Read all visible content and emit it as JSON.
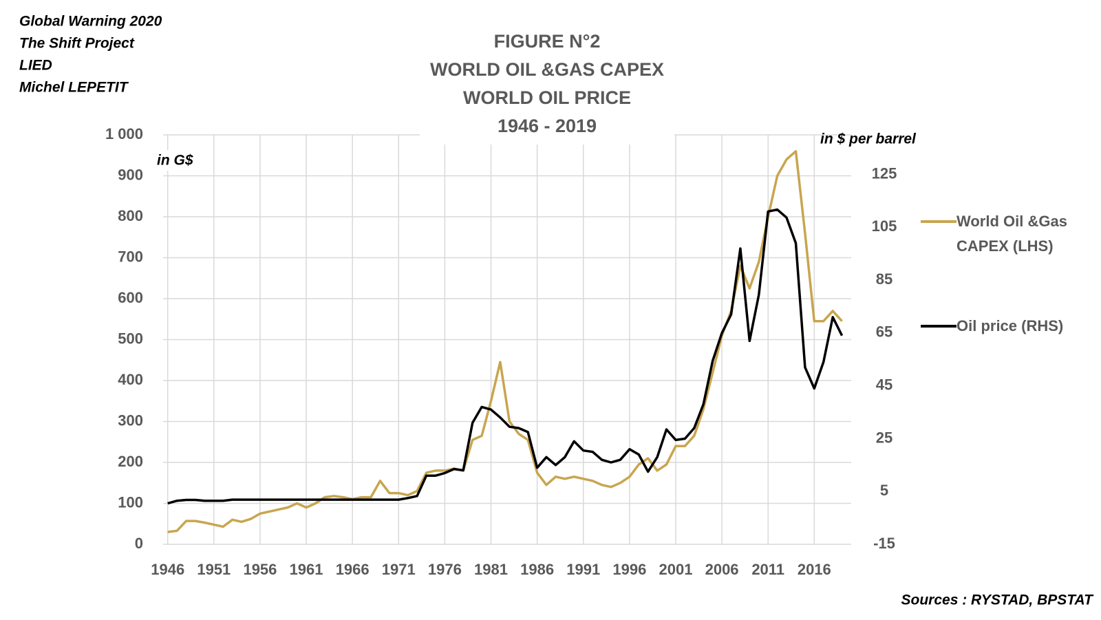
{
  "chart_data": {
    "type": "line",
    "notes": [
      "Global Warning 2020",
      "The Shift Project",
      "LIED",
      "Michel LEPETIT"
    ],
    "title_lines": [
      "FIGURE N°2",
      "WORLD OIL &GAS CAPEX",
      "WORLD OIL PRICE",
      "1946 - 2019"
    ],
    "ylabel": "in G$",
    "y2label": "in $ per barrel",
    "source": "Sources : RYSTAD, BPSTAT",
    "x": [
      1946,
      1947,
      1948,
      1949,
      1950,
      1951,
      1952,
      1953,
      1954,
      1955,
      1956,
      1957,
      1958,
      1959,
      1960,
      1961,
      1962,
      1963,
      1964,
      1965,
      1966,
      1967,
      1968,
      1969,
      1970,
      1971,
      1972,
      1973,
      1974,
      1975,
      1976,
      1977,
      1978,
      1979,
      1980,
      1981,
      1982,
      1983,
      1984,
      1985,
      1986,
      1987,
      1988,
      1989,
      1990,
      1991,
      1992,
      1993,
      1994,
      1995,
      1996,
      1997,
      1998,
      1999,
      2000,
      2001,
      2002,
      2003,
      2004,
      2005,
      2006,
      2007,
      2008,
      2009,
      2010,
      2011,
      2012,
      2013,
      2014,
      2015,
      2016,
      2017,
      2018,
      2019
    ],
    "series": [
      {
        "name": "World Oil &Gas CAPEX (LHS)",
        "color": "#c8a54f",
        "axis": "y",
        "values": [
          30,
          33,
          57,
          57,
          53,
          48,
          43,
          60,
          55,
          62,
          75,
          80,
          85,
          90,
          100,
          90,
          100,
          115,
          118,
          115,
          110,
          115,
          115,
          155,
          125,
          125,
          120,
          130,
          175,
          180,
          180,
          185,
          180,
          255,
          265,
          350,
          445,
          300,
          270,
          255,
          175,
          145,
          165,
          160,
          165,
          160,
          155,
          145,
          140,
          150,
          165,
          195,
          210,
          180,
          195,
          240,
          240,
          265,
          330,
          420,
          510,
          570,
          680,
          625,
          690,
          800,
          900,
          940,
          960,
          760,
          545,
          545,
          570,
          545
        ]
      },
      {
        "name": "Oil price (RHS)",
        "color": "#000000",
        "axis": "y2",
        "values": [
          0.5,
          1.5,
          1.8,
          1.8,
          1.5,
          1.5,
          1.5,
          1.9,
          1.9,
          1.9,
          1.9,
          1.9,
          1.9,
          1.9,
          1.9,
          1.9,
          1.9,
          1.9,
          1.9,
          1.9,
          1.9,
          1.9,
          1.9,
          1.9,
          1.9,
          1.9,
          2.5,
          3.3,
          11,
          11,
          12,
          13.5,
          13,
          31,
          37,
          36,
          33,
          29.5,
          29,
          27.5,
          14,
          18,
          15,
          18,
          24,
          20.5,
          20,
          17,
          16,
          17,
          21,
          19,
          12.5,
          18,
          28.5,
          24.5,
          25,
          29,
          38,
          54.5,
          65,
          72,
          97,
          62,
          79.5,
          111,
          111.7,
          108.7,
          99,
          52,
          44,
          54,
          71,
          64
        ]
      }
    ],
    "xlim": [
      1945.5,
      2020
    ],
    "xticks": [
      1946,
      1951,
      1956,
      1961,
      1966,
      1971,
      1976,
      1981,
      1986,
      1991,
      1996,
      2001,
      2006,
      2011,
      2016
    ],
    "ylim": [
      0,
      1000
    ],
    "yticks": [
      0,
      100,
      200,
      300,
      400,
      500,
      600,
      700,
      800,
      900,
      {
        "value": 1000,
        "label": "1 000"
      }
    ],
    "y2lim": [
      -15,
      140
    ],
    "y2ticks": [
      -15,
      5,
      25,
      45,
      65,
      85,
      105,
      125
    ],
    "grid": true
  }
}
